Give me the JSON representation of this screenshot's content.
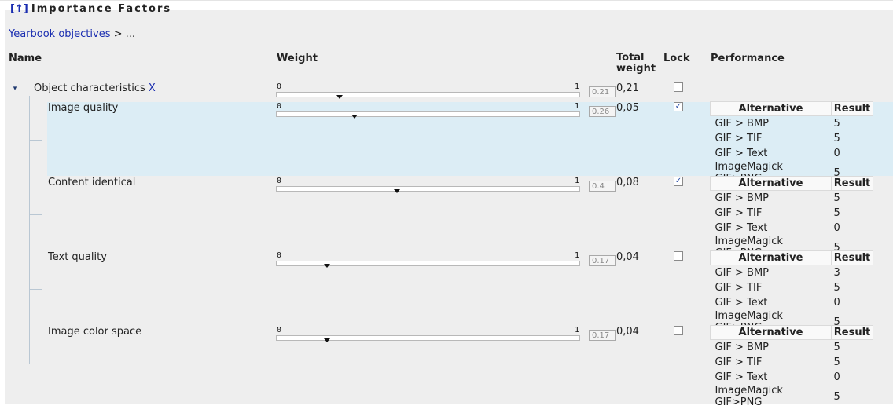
{
  "header": {
    "up_link": "[↑]",
    "title": "Importance Factors"
  },
  "breadcrumb": {
    "link": "Yearbook objectives",
    "rest": " > ..."
  },
  "columns": {
    "name": "Name",
    "weight": "Weight",
    "total_weight_l1": "Total",
    "total_weight_l2": "weight",
    "lock": "Lock",
    "performance": "Performance"
  },
  "perf_headers": {
    "alternative": "Alternative",
    "result": "Result"
  },
  "parent": {
    "expander": "▾",
    "name": "Object characteristics",
    "remove": "X",
    "slider": {
      "min": "0",
      "max": "1",
      "value": 0.21
    },
    "box": "0.21",
    "total": "0,21",
    "locked": false
  },
  "children": [
    {
      "name": "Image quality",
      "slider": {
        "min": "0",
        "max": "1",
        "value": 0.26
      },
      "box": "0.26",
      "total": "0,05",
      "locked": true,
      "perf": [
        {
          "alt": "GIF > BMP",
          "res": "5"
        },
        {
          "alt": "GIF > TIF",
          "res": "5"
        },
        {
          "alt": "GIF > Text",
          "res": "0"
        },
        {
          "alt": "ImageMagick GIF>PNG",
          "res": "5"
        }
      ]
    },
    {
      "name": "Content identical",
      "slider": {
        "min": "0",
        "max": "1",
        "value": 0.4
      },
      "box": "0.4",
      "total": "0,08",
      "locked": true,
      "perf": [
        {
          "alt": "GIF > BMP",
          "res": "5"
        },
        {
          "alt": "GIF > TIF",
          "res": "5"
        },
        {
          "alt": "GIF > Text",
          "res": "0"
        },
        {
          "alt": "ImageMagick GIF>PNG",
          "res": "5"
        }
      ]
    },
    {
      "name": "Text quality",
      "slider": {
        "min": "0",
        "max": "1",
        "value": 0.17
      },
      "box": "0.17",
      "total": "0,04",
      "locked": false,
      "perf": [
        {
          "alt": "GIF > BMP",
          "res": "3"
        },
        {
          "alt": "GIF > TIF",
          "res": "5"
        },
        {
          "alt": "GIF > Text",
          "res": "0"
        },
        {
          "alt": "ImageMagick GIF>PNG",
          "res": "5"
        }
      ]
    },
    {
      "name": "Image color space",
      "slider": {
        "min": "0",
        "max": "1",
        "value": 0.17
      },
      "box": "0.17",
      "total": "0,04",
      "locked": false,
      "perf": [
        {
          "alt": "GIF > BMP",
          "res": "5"
        },
        {
          "alt": "GIF > TIF",
          "res": "5"
        },
        {
          "alt": "GIF > Text",
          "res": "0"
        },
        {
          "alt": "ImageMagick GIF>PNG",
          "res": "5"
        }
      ]
    }
  ],
  "icons": {
    "checkbox_checked": "check-icon",
    "expander": "collapse-triangle-icon"
  }
}
